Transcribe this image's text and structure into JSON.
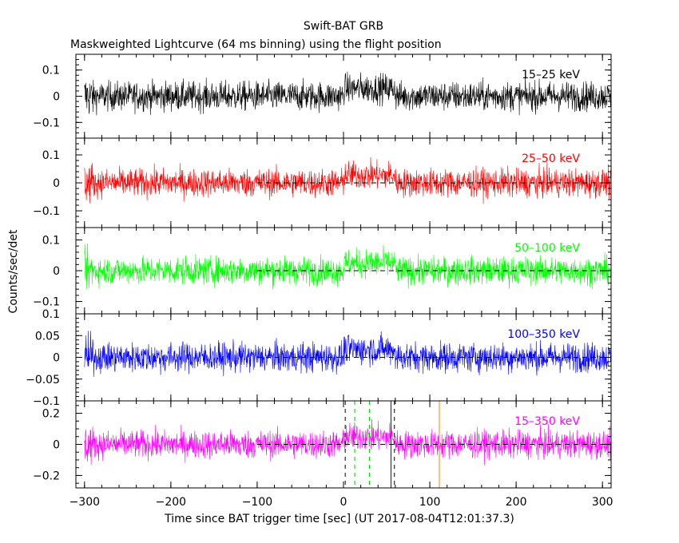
{
  "figure": {
    "title": "Swift-BAT GRB",
    "subtitle": "Maskweighted Lightcurve (64 ms binning) using the flight position",
    "xlabel": "Time since BAT trigger time [sec] (UT 2017-08-04T12:01:37.3)",
    "ylabel": "Counts/sec/det"
  },
  "chart_data": [
    {
      "type": "line",
      "panel": "15-25 keV",
      "label": "15–25 keV",
      "color": "#000000",
      "xlim": [
        -310,
        310
      ],
      "ylim": [
        -0.16,
        0.16
      ],
      "yticks": [
        -0.1,
        0,
        0.1
      ],
      "yticklabels": [
        "−0.1",
        "0",
        "0.1"
      ],
      "data_start": -300,
      "data_end": 310,
      "noise_amplitude": 0.05,
      "zero_line": false
    },
    {
      "type": "line",
      "panel": "25-50 keV",
      "label": "25–50 keV",
      "color": "#ff0000",
      "xlim": [
        -310,
        310
      ],
      "ylim": [
        -0.16,
        0.16
      ],
      "yticks": [
        -0.1,
        0,
        0.1
      ],
      "yticklabels": [
        "−0.1",
        "0",
        "0.1"
      ],
      "data_start": -300,
      "data_end": 310,
      "noise_amplitude": 0.045,
      "zero_line": true
    },
    {
      "type": "line",
      "panel": "50-100 keV",
      "label": "50–100 keV",
      "color": "#00ff00",
      "xlim": [
        -310,
        310
      ],
      "ylim": [
        -0.14,
        0.14
      ],
      "yticks": [
        -0.1,
        0,
        0.1
      ],
      "yticklabels": [
        "−0.1",
        "0",
        "0.1"
      ],
      "data_start": -300,
      "data_end": 310,
      "noise_amplitude": 0.04,
      "zero_line": true
    },
    {
      "type": "line",
      "panel": "100-350 keV",
      "label": "100–350 keV",
      "color": "#0000ff",
      "xlim": [
        -310,
        310
      ],
      "ylim": [
        -0.1,
        0.1
      ],
      "yticks": [
        -0.1,
        -0.05,
        0,
        0.05,
        0.1
      ],
      "yticklabels": [
        "−0.1",
        "−0.05",
        "0",
        "0.05",
        "0.1"
      ],
      "data_start": -300,
      "data_end": 310,
      "noise_amplitude": 0.03,
      "zero_line": true
    },
    {
      "type": "line",
      "panel": "15-350 keV",
      "label": "15–350 keV",
      "color": "#ff00ff",
      "xlim": [
        -310,
        310
      ],
      "ylim": [
        -0.28,
        0.28
      ],
      "yticks": [
        -0.2,
        0,
        0.2
      ],
      "yticklabels": [
        "−0.2",
        "0",
        "0.2"
      ],
      "data_start": -300,
      "data_end": 310,
      "noise_amplitude": 0.08,
      "zero_line": true,
      "markers": [
        {
          "x": 2,
          "color": "#000000",
          "style": "dashed"
        },
        {
          "x": 13,
          "color": "#00cc00",
          "style": "dashed"
        },
        {
          "x": 30,
          "color": "#00cc00",
          "style": "dashed"
        },
        {
          "x": 55,
          "color": "#0000ff",
          "style": "solid"
        },
        {
          "x": 59,
          "color": "#000000",
          "style": "dashed"
        },
        {
          "x": 111,
          "color": "#ff8000",
          "style": "solid"
        }
      ]
    }
  ],
  "xaxis": {
    "ticks": [
      -300,
      -200,
      -100,
      0,
      100,
      200,
      300
    ],
    "ticklabels": [
      "−300",
      "−200",
      "−100",
      "0",
      "100",
      "200",
      "300"
    ]
  }
}
